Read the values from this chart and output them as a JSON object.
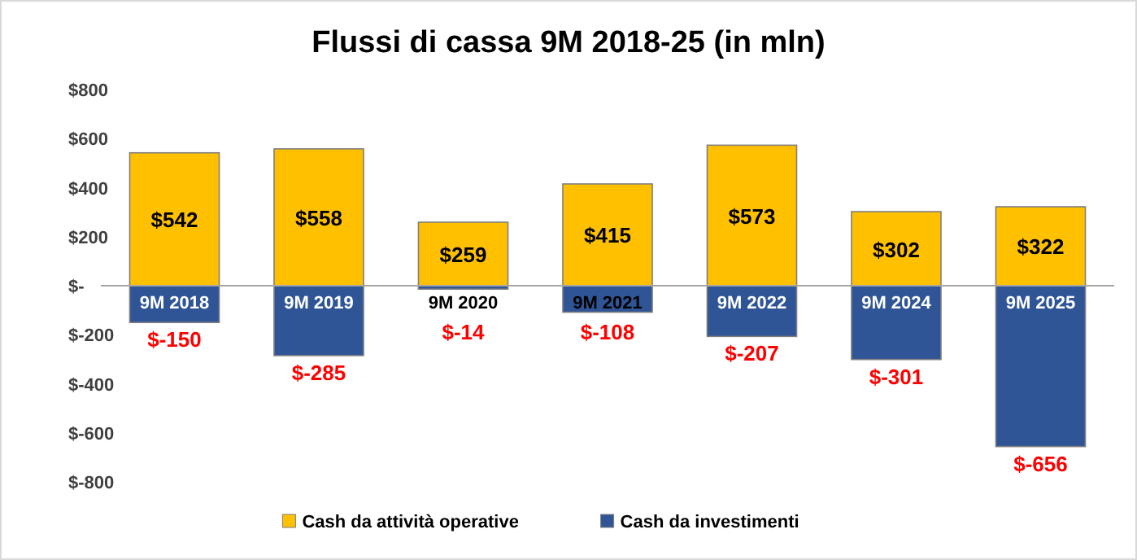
{
  "chart_data": {
    "type": "bar",
    "title": "Flussi di cassa 9M 2018-25 (in mln)",
    "categories": [
      "9M 2018",
      "9M 2019",
      "9M 2020",
      "9M 2021",
      "9M 2022",
      "9M 2024",
      "9M 2025"
    ],
    "series": [
      {
        "name": "Cash da attività operative",
        "color": "#ffc000",
        "values": [
          542,
          558,
          259,
          415,
          573,
          302,
          322
        ],
        "value_labels": [
          "$542",
          "$558",
          "$259",
          "$415",
          "$573",
          "$302",
          "$322"
        ]
      },
      {
        "name": "Cash da investimenti",
        "color": "#2f5597",
        "values": [
          -150,
          -285,
          -14,
          -108,
          -207,
          -301,
          -656
        ],
        "value_labels": [
          "$-150",
          "$-285",
          "$-14",
          "$-108",
          "$-207",
          "$-301",
          "$-656"
        ]
      }
    ],
    "ylim": [
      -800,
      800
    ],
    "yticks": [
      {
        "value": -800,
        "label": "$-800"
      },
      {
        "value": -600,
        "label": "$-600"
      },
      {
        "value": -400,
        "label": "$-400"
      },
      {
        "value": -200,
        "label": "$-200"
      },
      {
        "value": 0,
        "label": "$-"
      },
      {
        "value": 200,
        "label": "$200"
      },
      {
        "value": 400,
        "label": "$400"
      },
      {
        "value": 600,
        "label": "$600"
      },
      {
        "value": 800,
        "label": "$800"
      }
    ],
    "stacked": true,
    "grid": false,
    "legend": "bottom"
  }
}
